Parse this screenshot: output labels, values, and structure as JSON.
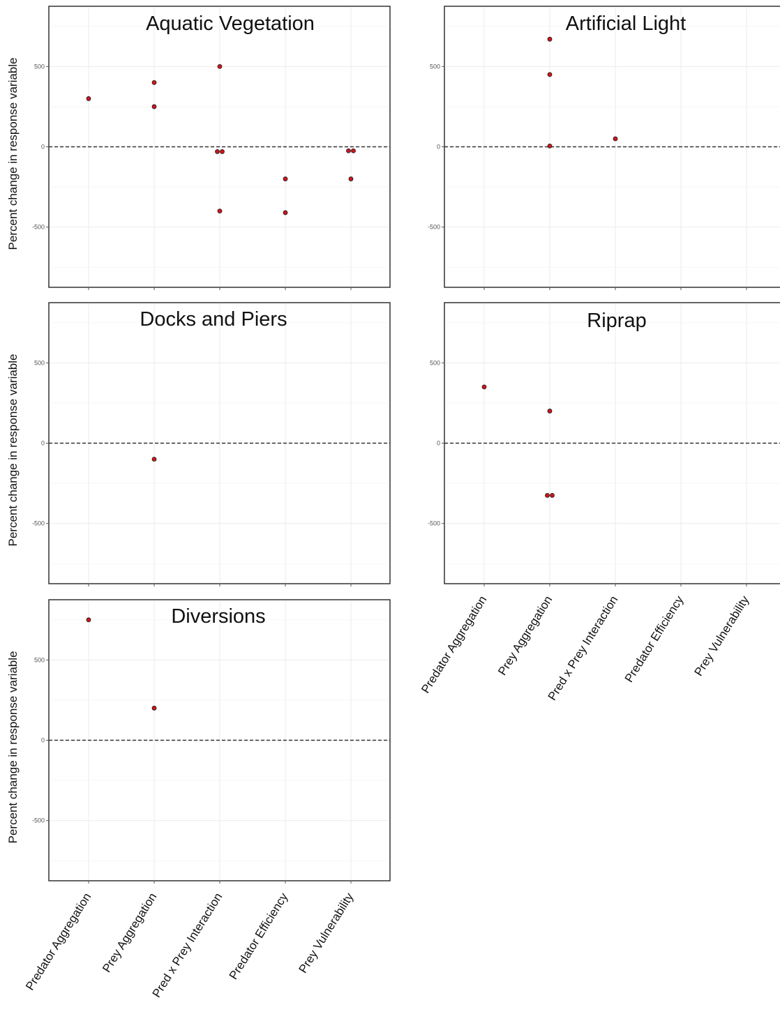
{
  "chart_data": {
    "type": "scatter",
    "categories": [
      "Predator Aggregation",
      "Prey Aggregation",
      "Pred x Prey Interaction",
      "Predator Efficiency",
      "Prey Vulnerability"
    ],
    "ylabel": "Percent change in response variable",
    "ylim": [
      -875,
      875
    ],
    "yticks": [
      -500,
      0,
      500
    ],
    "reference_line": 0,
    "point_color": "#d0141c",
    "grid": true,
    "panels": [
      {
        "title": "Aquatic Vegetation",
        "points": [
          {
            "category": "Predator Aggregation",
            "y": 300
          },
          {
            "category": "Prey Aggregation",
            "y": 400
          },
          {
            "category": "Prey Aggregation",
            "y": 250
          },
          {
            "category": "Pred x Prey Interaction",
            "y": 500
          },
          {
            "category": "Pred x Prey Interaction",
            "y": -30
          },
          {
            "category": "Pred x Prey Interaction",
            "y": -30
          },
          {
            "category": "Pred x Prey Interaction",
            "y": -400
          },
          {
            "category": "Predator Efficiency",
            "y": -200
          },
          {
            "category": "Predator Efficiency",
            "y": -410
          },
          {
            "category": "Prey Vulnerability",
            "y": -25
          },
          {
            "category": "Prey Vulnerability",
            "y": -25
          },
          {
            "category": "Prey Vulnerability",
            "y": -200
          }
        ]
      },
      {
        "title": "Artificial Light",
        "points": [
          {
            "category": "Prey Aggregation",
            "y": 670
          },
          {
            "category": "Prey Aggregation",
            "y": 450
          },
          {
            "category": "Prey Aggregation",
            "y": 5
          },
          {
            "category": "Pred x Prey Interaction",
            "y": 50
          }
        ]
      },
      {
        "title": "Docks and Piers",
        "points": [
          {
            "category": "Prey Aggregation",
            "y": -100
          }
        ]
      },
      {
        "title": "Riprap",
        "points": [
          {
            "category": "Predator Aggregation",
            "y": 350
          },
          {
            "category": "Prey Aggregation",
            "y": 200
          },
          {
            "category": "Prey Aggregation",
            "y": -325
          },
          {
            "category": "Prey Aggregation",
            "y": -325
          }
        ]
      },
      {
        "title": "Diversions",
        "points": [
          {
            "category": "Predator Aggregation",
            "y": 750
          },
          {
            "category": "Prey Aggregation",
            "y": 200
          }
        ]
      }
    ]
  }
}
